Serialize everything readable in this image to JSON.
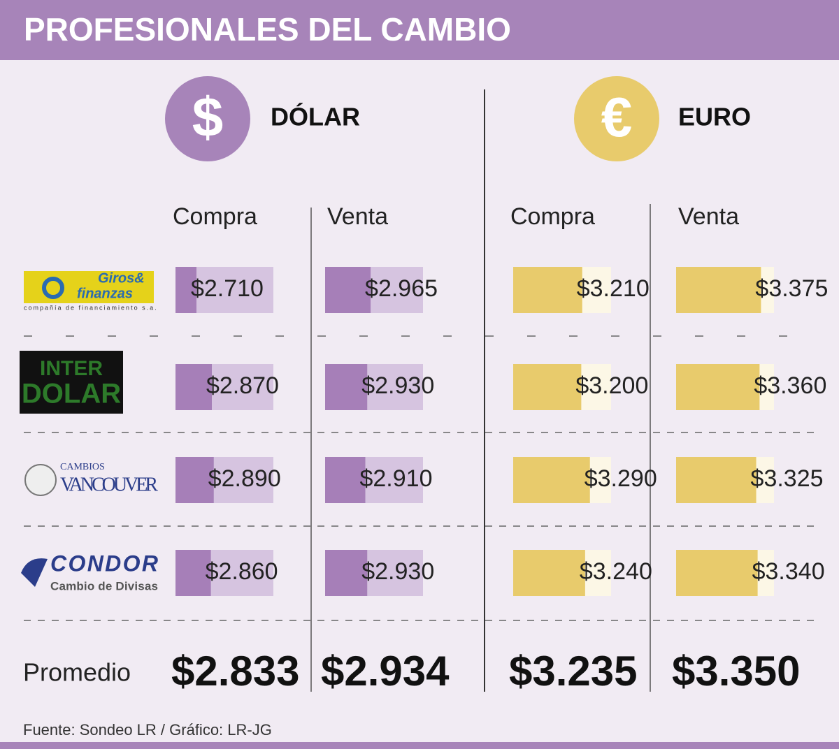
{
  "chart_data": {
    "type": "bar",
    "title": "PROFESIONALES DEL CAMBIO",
    "xlim": [
      2492,
      3510
    ],
    "categories": [
      {
        "lines": [
          "Giros&",
          "finanzas"
        ],
        "tagline": "compañía de financiamiento s.a."
      },
      {
        "lines": [
          "INTER",
          "DOLAR"
        ]
      },
      {
        "lines": [
          "CAMBIOS",
          "VANCOUVER"
        ]
      },
      {
        "lines": [
          "CONDOR",
          "Cambio de Divisas"
        ]
      }
    ],
    "currencies": [
      {
        "name": "DÓLAR",
        "symbol": "$",
        "color": "#a67fb8",
        "light": "#d6c4e0",
        "icon": "#a784b9",
        "series": [
          {
            "name": "Compra",
            "values": [
              2710,
              2870,
              2890,
              2860
            ],
            "value_labels": [
              "$2.710",
              "$2.870",
              "$2.890",
              "$2.860"
            ],
            "average": {
              "value": 2833,
              "label": "$2.833"
            }
          },
          {
            "name": "Venta",
            "values": [
              2965,
              2930,
              2910,
              2930
            ],
            "value_labels": [
              "$2.965",
              "$2.930",
              "$2.910",
              "$2.930"
            ],
            "average": {
              "value": 2934,
              "label": "$2.934"
            }
          }
        ]
      },
      {
        "name": "EURO",
        "symbol": "€",
        "color": "#e8cb6c",
        "light": "#fcf7e6",
        "icon": "#e8cb6c",
        "series": [
          {
            "name": "Compra",
            "values": [
              3210,
              3200,
              3290,
              3240
            ],
            "value_labels": [
              "$3.210",
              "$3.200",
              "$3.290",
              "$3.240"
            ],
            "average": {
              "value": 3235,
              "label": "$3.235"
            }
          },
          {
            "name": "Venta",
            "values": [
              3375,
              3360,
              3325,
              3340
            ],
            "value_labels": [
              "$3.375",
              "$3.360",
              "$3.325",
              "$3.340"
            ],
            "average": {
              "value": 3350,
              "label": "$3.350"
            }
          }
        ]
      }
    ],
    "average_label": "Promedio",
    "source": "Fuente: Sondeo LR / Gráfico: LR-JG"
  }
}
